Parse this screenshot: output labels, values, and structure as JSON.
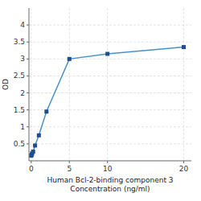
{
  "chart_data": {
    "type": "line",
    "x": [
      0,
      0.063,
      0.125,
      0.25,
      0.5,
      1,
      2,
      5,
      10,
      20
    ],
    "values": [
      0.15,
      0.18,
      0.22,
      0.27,
      0.45,
      0.75,
      1.45,
      3.0,
      3.15,
      3.35
    ],
    "x_label": [
      "Human Bcl-2-binding component 3",
      "Concentration (ng/ml)"
    ],
    "y_label": "OD",
    "xlim": [
      -0.3,
      21
    ],
    "ylim": [
      0,
      4.5
    ],
    "xticks": [
      0,
      5,
      10,
      20
    ],
    "yticks": [
      0.5,
      1,
      1.5,
      2,
      2.5,
      3,
      3.5,
      4
    ],
    "marker": "square",
    "grid": true
  }
}
